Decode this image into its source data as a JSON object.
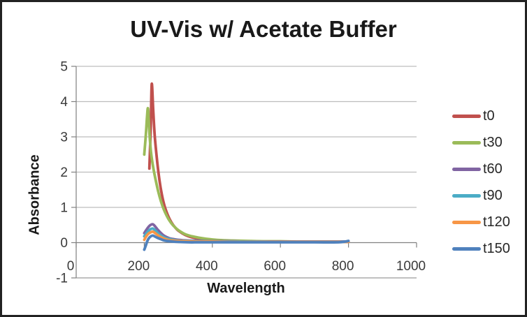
{
  "chart_data": {
    "type": "line",
    "title": "UV-Vis w/ Acetate Buffer",
    "xlabel": "Wavelength",
    "ylabel": "Absorbance",
    "xlim": [
      0,
      1000
    ],
    "ylim": [
      -1,
      5
    ],
    "x_ticks": [
      0,
      200,
      400,
      600,
      800,
      1000
    ],
    "y_ticks": [
      -1,
      0,
      1,
      2,
      3,
      4,
      5
    ],
    "grid": "horizontal-major-only",
    "legend_position": "right",
    "x_data_range": [
      200,
      800
    ],
    "series": [
      {
        "name": "t0",
        "color": "#C0504D",
        "peak": {
          "wavelength": 222,
          "absorbance": 4.5
        },
        "points": [
          [
            215,
            2.1
          ],
          [
            219,
            3.3
          ],
          [
            222,
            4.5
          ],
          [
            226,
            3.8
          ],
          [
            231,
            3.0
          ],
          [
            238,
            2.3
          ],
          [
            245,
            1.75
          ],
          [
            252,
            1.35
          ],
          [
            260,
            1.03
          ],
          [
            270,
            0.76
          ],
          [
            280,
            0.57
          ],
          [
            290,
            0.44
          ],
          [
            300,
            0.34
          ],
          [
            320,
            0.22
          ],
          [
            340,
            0.15
          ],
          [
            360,
            0.11
          ],
          [
            380,
            0.08
          ],
          [
            400,
            0.06
          ],
          [
            430,
            0.05
          ],
          [
            460,
            0.04
          ],
          [
            500,
            0.03
          ],
          [
            550,
            0.02
          ],
          [
            600,
            0.02
          ],
          [
            650,
            0.02
          ],
          [
            700,
            0.02
          ],
          [
            750,
            0.02
          ],
          [
            800,
            0.02
          ]
        ]
      },
      {
        "name": "t30",
        "color": "#9BBB59",
        "peak": {
          "wavelength": 211,
          "absorbance": 3.8
        },
        "points": [
          [
            200,
            2.5
          ],
          [
            205,
            3.1
          ],
          [
            208,
            3.55
          ],
          [
            211,
            3.8
          ],
          [
            215,
            3.15
          ],
          [
            220,
            2.55
          ],
          [
            227,
            2.1
          ],
          [
            234,
            1.75
          ],
          [
            241,
            1.45
          ],
          [
            249,
            1.17
          ],
          [
            257,
            0.95
          ],
          [
            265,
            0.78
          ],
          [
            273,
            0.64
          ],
          [
            282,
            0.52
          ],
          [
            292,
            0.42
          ],
          [
            302,
            0.34
          ],
          [
            320,
            0.24
          ],
          [
            340,
            0.18
          ],
          [
            360,
            0.14
          ],
          [
            380,
            0.11
          ],
          [
            400,
            0.09
          ],
          [
            430,
            0.07
          ],
          [
            460,
            0.06
          ],
          [
            500,
            0.05
          ],
          [
            550,
            0.04
          ],
          [
            600,
            0.04
          ],
          [
            650,
            0.03
          ],
          [
            700,
            0.03
          ],
          [
            750,
            0.03
          ],
          [
            800,
            0.03
          ]
        ]
      },
      {
        "name": "t60",
        "color": "#8064A2",
        "peak": {
          "wavelength": 225,
          "absorbance": 0.52
        },
        "points": [
          [
            200,
            0.27
          ],
          [
            206,
            0.36
          ],
          [
            212,
            0.44
          ],
          [
            218,
            0.5
          ],
          [
            225,
            0.52
          ],
          [
            232,
            0.46
          ],
          [
            240,
            0.36
          ],
          [
            248,
            0.28
          ],
          [
            256,
            0.21
          ],
          [
            265,
            0.16
          ],
          [
            275,
            0.12
          ],
          [
            285,
            0.1
          ],
          [
            300,
            0.08
          ],
          [
            330,
            0.06
          ],
          [
            360,
            0.05
          ],
          [
            400,
            0.04
          ],
          [
            450,
            0.04
          ],
          [
            500,
            0.03
          ],
          [
            600,
            0.03
          ],
          [
            700,
            0.03
          ],
          [
            800,
            0.03
          ]
        ]
      },
      {
        "name": "t90",
        "color": "#4BACC6",
        "peak": {
          "wavelength": 225,
          "absorbance": 0.4
        },
        "points": [
          [
            200,
            0.18
          ],
          [
            206,
            0.26
          ],
          [
            212,
            0.33
          ],
          [
            218,
            0.38
          ],
          [
            225,
            0.4
          ],
          [
            232,
            0.35
          ],
          [
            240,
            0.27
          ],
          [
            248,
            0.21
          ],
          [
            256,
            0.16
          ],
          [
            265,
            0.12
          ],
          [
            275,
            0.1
          ],
          [
            285,
            0.08
          ],
          [
            300,
            0.06
          ],
          [
            330,
            0.05
          ],
          [
            360,
            0.04
          ],
          [
            400,
            0.03
          ],
          [
            450,
            0.03
          ],
          [
            500,
            0.03
          ],
          [
            600,
            0.02
          ],
          [
            700,
            0.02
          ],
          [
            800,
            0.02
          ]
        ]
      },
      {
        "name": "t120",
        "color": "#F79646",
        "peak": {
          "wavelength": 225,
          "absorbance": 0.31
        },
        "points": [
          [
            200,
            0.08
          ],
          [
            206,
            0.18
          ],
          [
            212,
            0.25
          ],
          [
            218,
            0.29
          ],
          [
            225,
            0.31
          ],
          [
            232,
            0.27
          ],
          [
            240,
            0.21
          ],
          [
            248,
            0.16
          ],
          [
            256,
            0.12
          ],
          [
            265,
            0.09
          ],
          [
            275,
            0.07
          ],
          [
            285,
            0.06
          ],
          [
            300,
            0.05
          ],
          [
            330,
            0.04
          ],
          [
            360,
            0.03
          ],
          [
            400,
            0.03
          ],
          [
            450,
            0.02
          ],
          [
            500,
            0.02
          ],
          [
            600,
            0.02
          ],
          [
            700,
            0.02
          ],
          [
            800,
            0.02
          ]
        ]
      },
      {
        "name": "t150",
        "color": "#4F81BD",
        "peak": {
          "wavelength": 225,
          "absorbance": 0.2
        },
        "points": [
          [
            200,
            -0.2
          ],
          [
            204,
            -0.1
          ],
          [
            208,
            0.02
          ],
          [
            212,
            0.1
          ],
          [
            218,
            0.17
          ],
          [
            225,
            0.2
          ],
          [
            232,
            0.17
          ],
          [
            240,
            0.13
          ],
          [
            248,
            0.1
          ],
          [
            256,
            0.07
          ],
          [
            265,
            0.05
          ],
          [
            275,
            0.04
          ],
          [
            285,
            0.03
          ],
          [
            300,
            0.02
          ],
          [
            330,
            0.01
          ],
          [
            360,
            0.01
          ],
          [
            400,
            0.01
          ],
          [
            450,
            0.01
          ],
          [
            500,
            0.01
          ],
          [
            600,
            0.01
          ],
          [
            700,
            0.01
          ],
          [
            770,
            0.01
          ],
          [
            790,
            0.03
          ],
          [
            800,
            0.05
          ]
        ]
      }
    ]
  },
  "styles": {
    "background": "#FFFFFF",
    "frame_border_color": "#222222",
    "gridline_color": "#BDBDBD",
    "bottom_gridline_color": "#9B9B9B",
    "axis_color": "#808080",
    "tick_label_color": "#3A3A3A",
    "title_color": "#191919",
    "series_stroke_width": 3.8
  }
}
